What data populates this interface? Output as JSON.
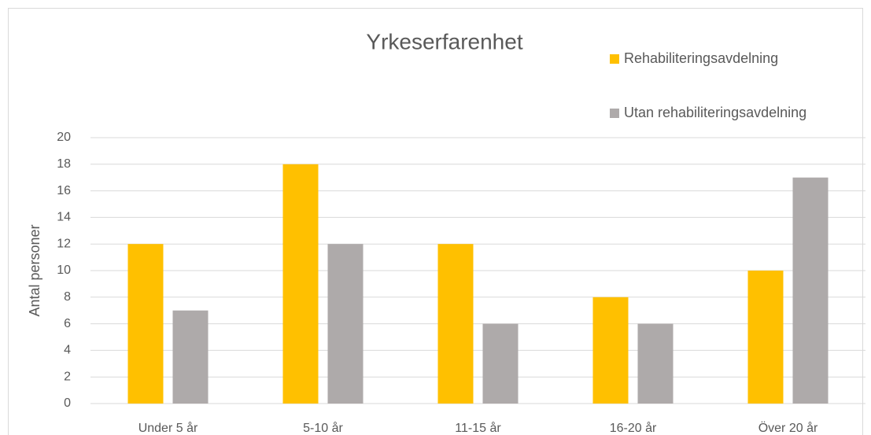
{
  "chart_data": {
    "type": "bar",
    "title": "Yrkeserfarenhet",
    "y_label": "Antal personer",
    "categories": [
      "Under 5 år",
      "5-10 år",
      "11-15 år",
      "16-20 år",
      "Över 20 år"
    ],
    "series": [
      {
        "name": "Rehabiliteringsavdelning",
        "color": "#ffc000",
        "values": [
          12,
          18,
          12,
          8,
          10
        ]
      },
      {
        "name": "Utan rehabiliteringsavdelning",
        "color": "#aeaaaa",
        "values": [
          7,
          12,
          6,
          6,
          17
        ]
      }
    ],
    "ylim": [
      0,
      20
    ],
    "yticks": [
      0,
      2,
      4,
      6,
      8,
      10,
      12,
      14,
      16,
      18,
      20
    ],
    "grid": true,
    "legend": "top-right"
  }
}
